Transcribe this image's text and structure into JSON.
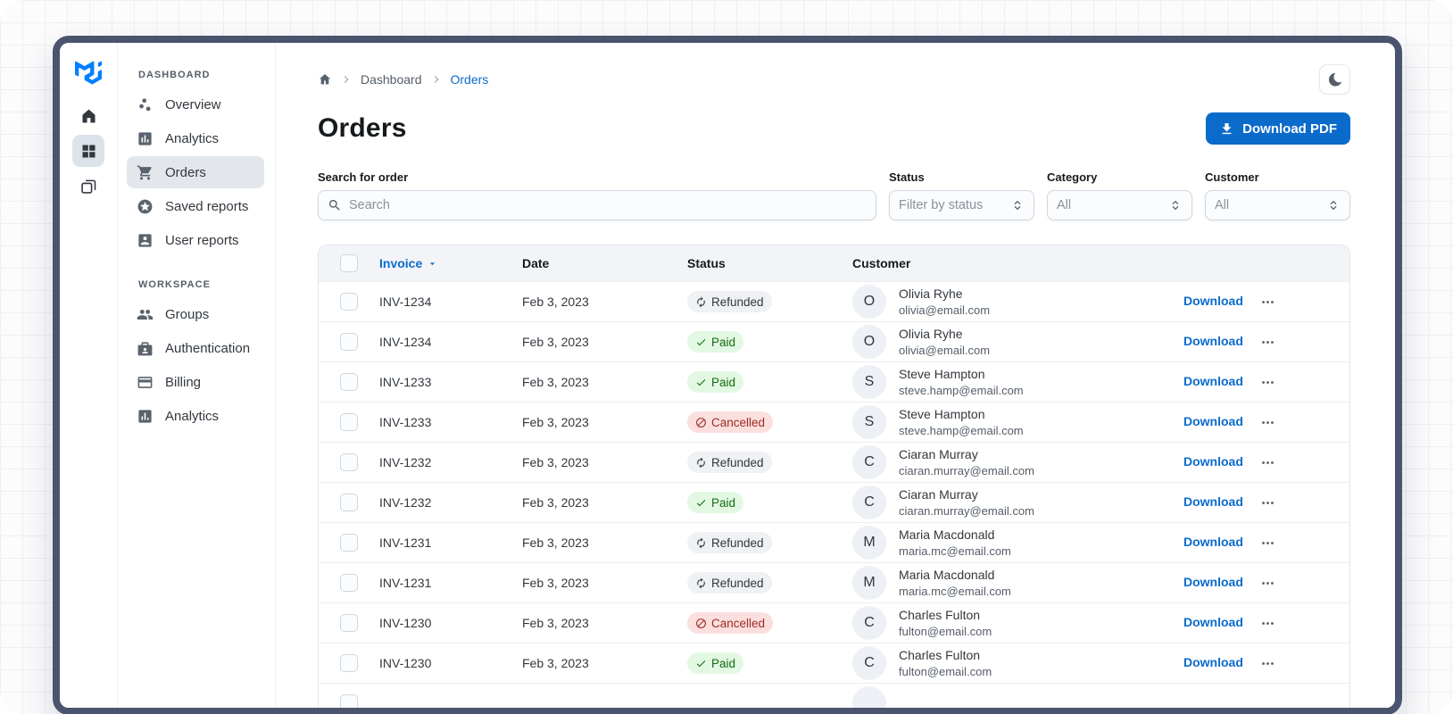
{
  "colors": {
    "primary": "#0B6BCB",
    "frame": "#4A546E",
    "chip_neutral_bg": "#EFF1F4",
    "chip_success_bg": "#E3F8E2",
    "chip_success_text": "#136C13",
    "chip_danger_bg": "#FBDFDE",
    "chip_danger_text": "#9B2C24",
    "logo_blue": "#007FFF"
  },
  "rail": {
    "logo": "mui-logo",
    "items": [
      {
        "icon": "home-icon",
        "selected": false
      },
      {
        "icon": "dashboard-icon",
        "selected": true
      },
      {
        "icon": "layers-icon",
        "selected": false
      }
    ]
  },
  "sidebar": {
    "sections": [
      {
        "caption": "DASHBOARD",
        "items": [
          {
            "label": "Overview",
            "icon": "scatter-icon",
            "selected": false
          },
          {
            "label": "Analytics",
            "icon": "analytics-icon",
            "selected": false
          },
          {
            "label": "Orders",
            "icon": "cart-icon",
            "selected": true
          },
          {
            "label": "Saved reports",
            "icon": "star-circle-icon",
            "selected": false
          },
          {
            "label": "User reports",
            "icon": "user-card-icon",
            "selected": false
          }
        ]
      },
      {
        "caption": "WORKSPACE",
        "items": [
          {
            "label": "Groups",
            "icon": "groups-icon",
            "selected": false
          },
          {
            "label": "Authentication",
            "icon": "badge-icon",
            "selected": false
          },
          {
            "label": "Billing",
            "icon": "card-icon",
            "selected": false
          },
          {
            "label": "Analytics",
            "icon": "chart-icon",
            "selected": false
          }
        ]
      }
    ]
  },
  "breadcrumb": {
    "home_icon": "home-small-icon",
    "items": [
      "Dashboard",
      "Orders"
    ]
  },
  "page": {
    "title": "Orders"
  },
  "actions": {
    "download_pdf": "Download PDF"
  },
  "filters": {
    "search": {
      "label": "Search for order",
      "placeholder": "Search"
    },
    "status": {
      "label": "Status",
      "value": "Filter by status"
    },
    "category": {
      "label": "Category",
      "value": "All"
    },
    "customer": {
      "label": "Customer",
      "value": "All"
    }
  },
  "table": {
    "columns": {
      "invoice": "Invoice",
      "date": "Date",
      "status": "Status",
      "customer": "Customer"
    },
    "sorted_column": "Invoice",
    "sort_direction": "desc",
    "has_partial_last_row": true,
    "rows": [
      {
        "invoice": "INV-1234",
        "date": "Feb 3, 2023",
        "status": "Refunded",
        "variant": "neutral",
        "initial": "O",
        "name": "Olivia Ryhe",
        "email": "olivia@email.com",
        "download": "Download"
      },
      {
        "invoice": "INV-1234",
        "date": "Feb 3, 2023",
        "status": "Paid",
        "variant": "success",
        "initial": "O",
        "name": "Olivia Ryhe",
        "email": "olivia@email.com",
        "download": "Download"
      },
      {
        "invoice": "INV-1233",
        "date": "Feb 3, 2023",
        "status": "Paid",
        "variant": "success",
        "initial": "S",
        "name": "Steve Hampton",
        "email": "steve.hamp@email.com",
        "download": "Download"
      },
      {
        "invoice": "INV-1233",
        "date": "Feb 3, 2023",
        "status": "Cancelled",
        "variant": "danger",
        "initial": "S",
        "name": "Steve Hampton",
        "email": "steve.hamp@email.com",
        "download": "Download"
      },
      {
        "invoice": "INV-1232",
        "date": "Feb 3, 2023",
        "status": "Refunded",
        "variant": "neutral",
        "initial": "C",
        "name": "Ciaran Murray",
        "email": "ciaran.murray@email.com",
        "download": "Download"
      },
      {
        "invoice": "INV-1232",
        "date": "Feb 3, 2023",
        "status": "Paid",
        "variant": "success",
        "initial": "C",
        "name": "Ciaran Murray",
        "email": "ciaran.murray@email.com",
        "download": "Download"
      },
      {
        "invoice": "INV-1231",
        "date": "Feb 3, 2023",
        "status": "Refunded",
        "variant": "neutral",
        "initial": "M",
        "name": "Maria Macdonald",
        "email": "maria.mc@email.com",
        "download": "Download"
      },
      {
        "invoice": "INV-1231",
        "date": "Feb 3, 2023",
        "status": "Refunded",
        "variant": "neutral",
        "initial": "M",
        "name": "Maria Macdonald",
        "email": "maria.mc@email.com",
        "download": "Download"
      },
      {
        "invoice": "INV-1230",
        "date": "Feb 3, 2023",
        "status": "Cancelled",
        "variant": "danger",
        "initial": "C",
        "name": "Charles Fulton",
        "email": "fulton@email.com",
        "download": "Download"
      },
      {
        "invoice": "INV-1230",
        "date": "Feb 3, 2023",
        "status": "Paid",
        "variant": "success",
        "initial": "C",
        "name": "Charles Fulton",
        "email": "fulton@email.com",
        "download": "Download"
      }
    ]
  }
}
